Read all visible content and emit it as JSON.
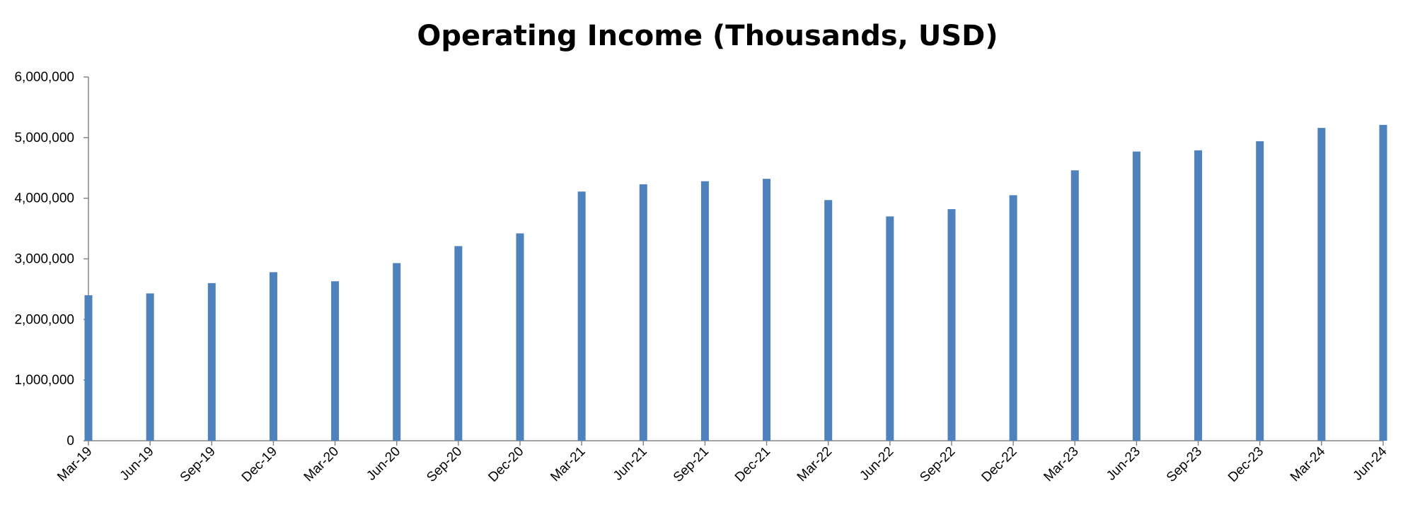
{
  "chart_data": {
    "type": "bar",
    "title": "Operating Income (Thousands, USD)",
    "xlabel": "",
    "ylabel": "",
    "categories": [
      "Mar-19",
      "Jun-19",
      "Sep-19",
      "Dec-19",
      "Mar-20",
      "Jun-20",
      "Sep-20",
      "Dec-20",
      "Mar-21",
      "Jun-21",
      "Sep-21",
      "Dec-21",
      "Mar-22",
      "Jun-22",
      "Sep-22",
      "Dec-22",
      "Mar-23",
      "Jun-23",
      "Sep-23",
      "Dec-23",
      "Mar-24",
      "Jun-24"
    ],
    "values": [
      2400000,
      2430000,
      2600000,
      2780000,
      2630000,
      2930000,
      3210000,
      3420000,
      4110000,
      4230000,
      4280000,
      4320000,
      3970000,
      3700000,
      3820000,
      4050000,
      4460000,
      4770000,
      4790000,
      4940000,
      5160000,
      5210000
    ],
    "ylim": [
      0,
      6000000
    ],
    "yticks": [
      "0",
      "1,000,000",
      "2,000,000",
      "3,000,000",
      "4,000,000",
      "5,000,000",
      "6,000,000"
    ],
    "grid": false,
    "legend": "none",
    "bar_color": "#4F81BD"
  }
}
